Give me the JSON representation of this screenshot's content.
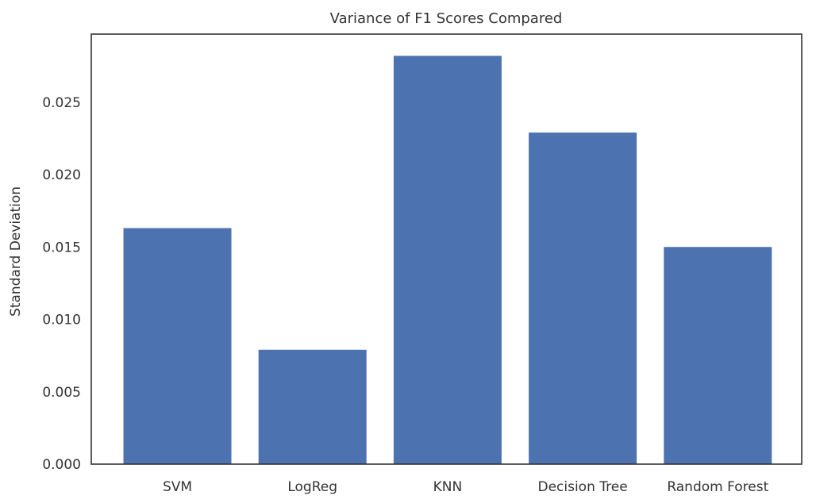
{
  "chart_data": {
    "type": "bar",
    "title": "Variance of F1 Scores Compared",
    "xlabel": "",
    "ylabel": "Standard Deviation",
    "categories": [
      "SVM",
      "LogReg",
      "KNN",
      "Decision Tree",
      "Random Forest"
    ],
    "values": [
      0.0163,
      0.0079,
      0.0282,
      0.0229,
      0.015
    ],
    "ylim": [
      0,
      0.0297
    ],
    "yticks": [
      0.0,
      0.005,
      0.01,
      0.015,
      0.02,
      0.025
    ],
    "ytick_labels": [
      "0.000",
      "0.005",
      "0.010",
      "0.015",
      "0.020",
      "0.025"
    ],
    "bar_color": "#4c72b0",
    "grid": false,
    "legend": "none"
  }
}
